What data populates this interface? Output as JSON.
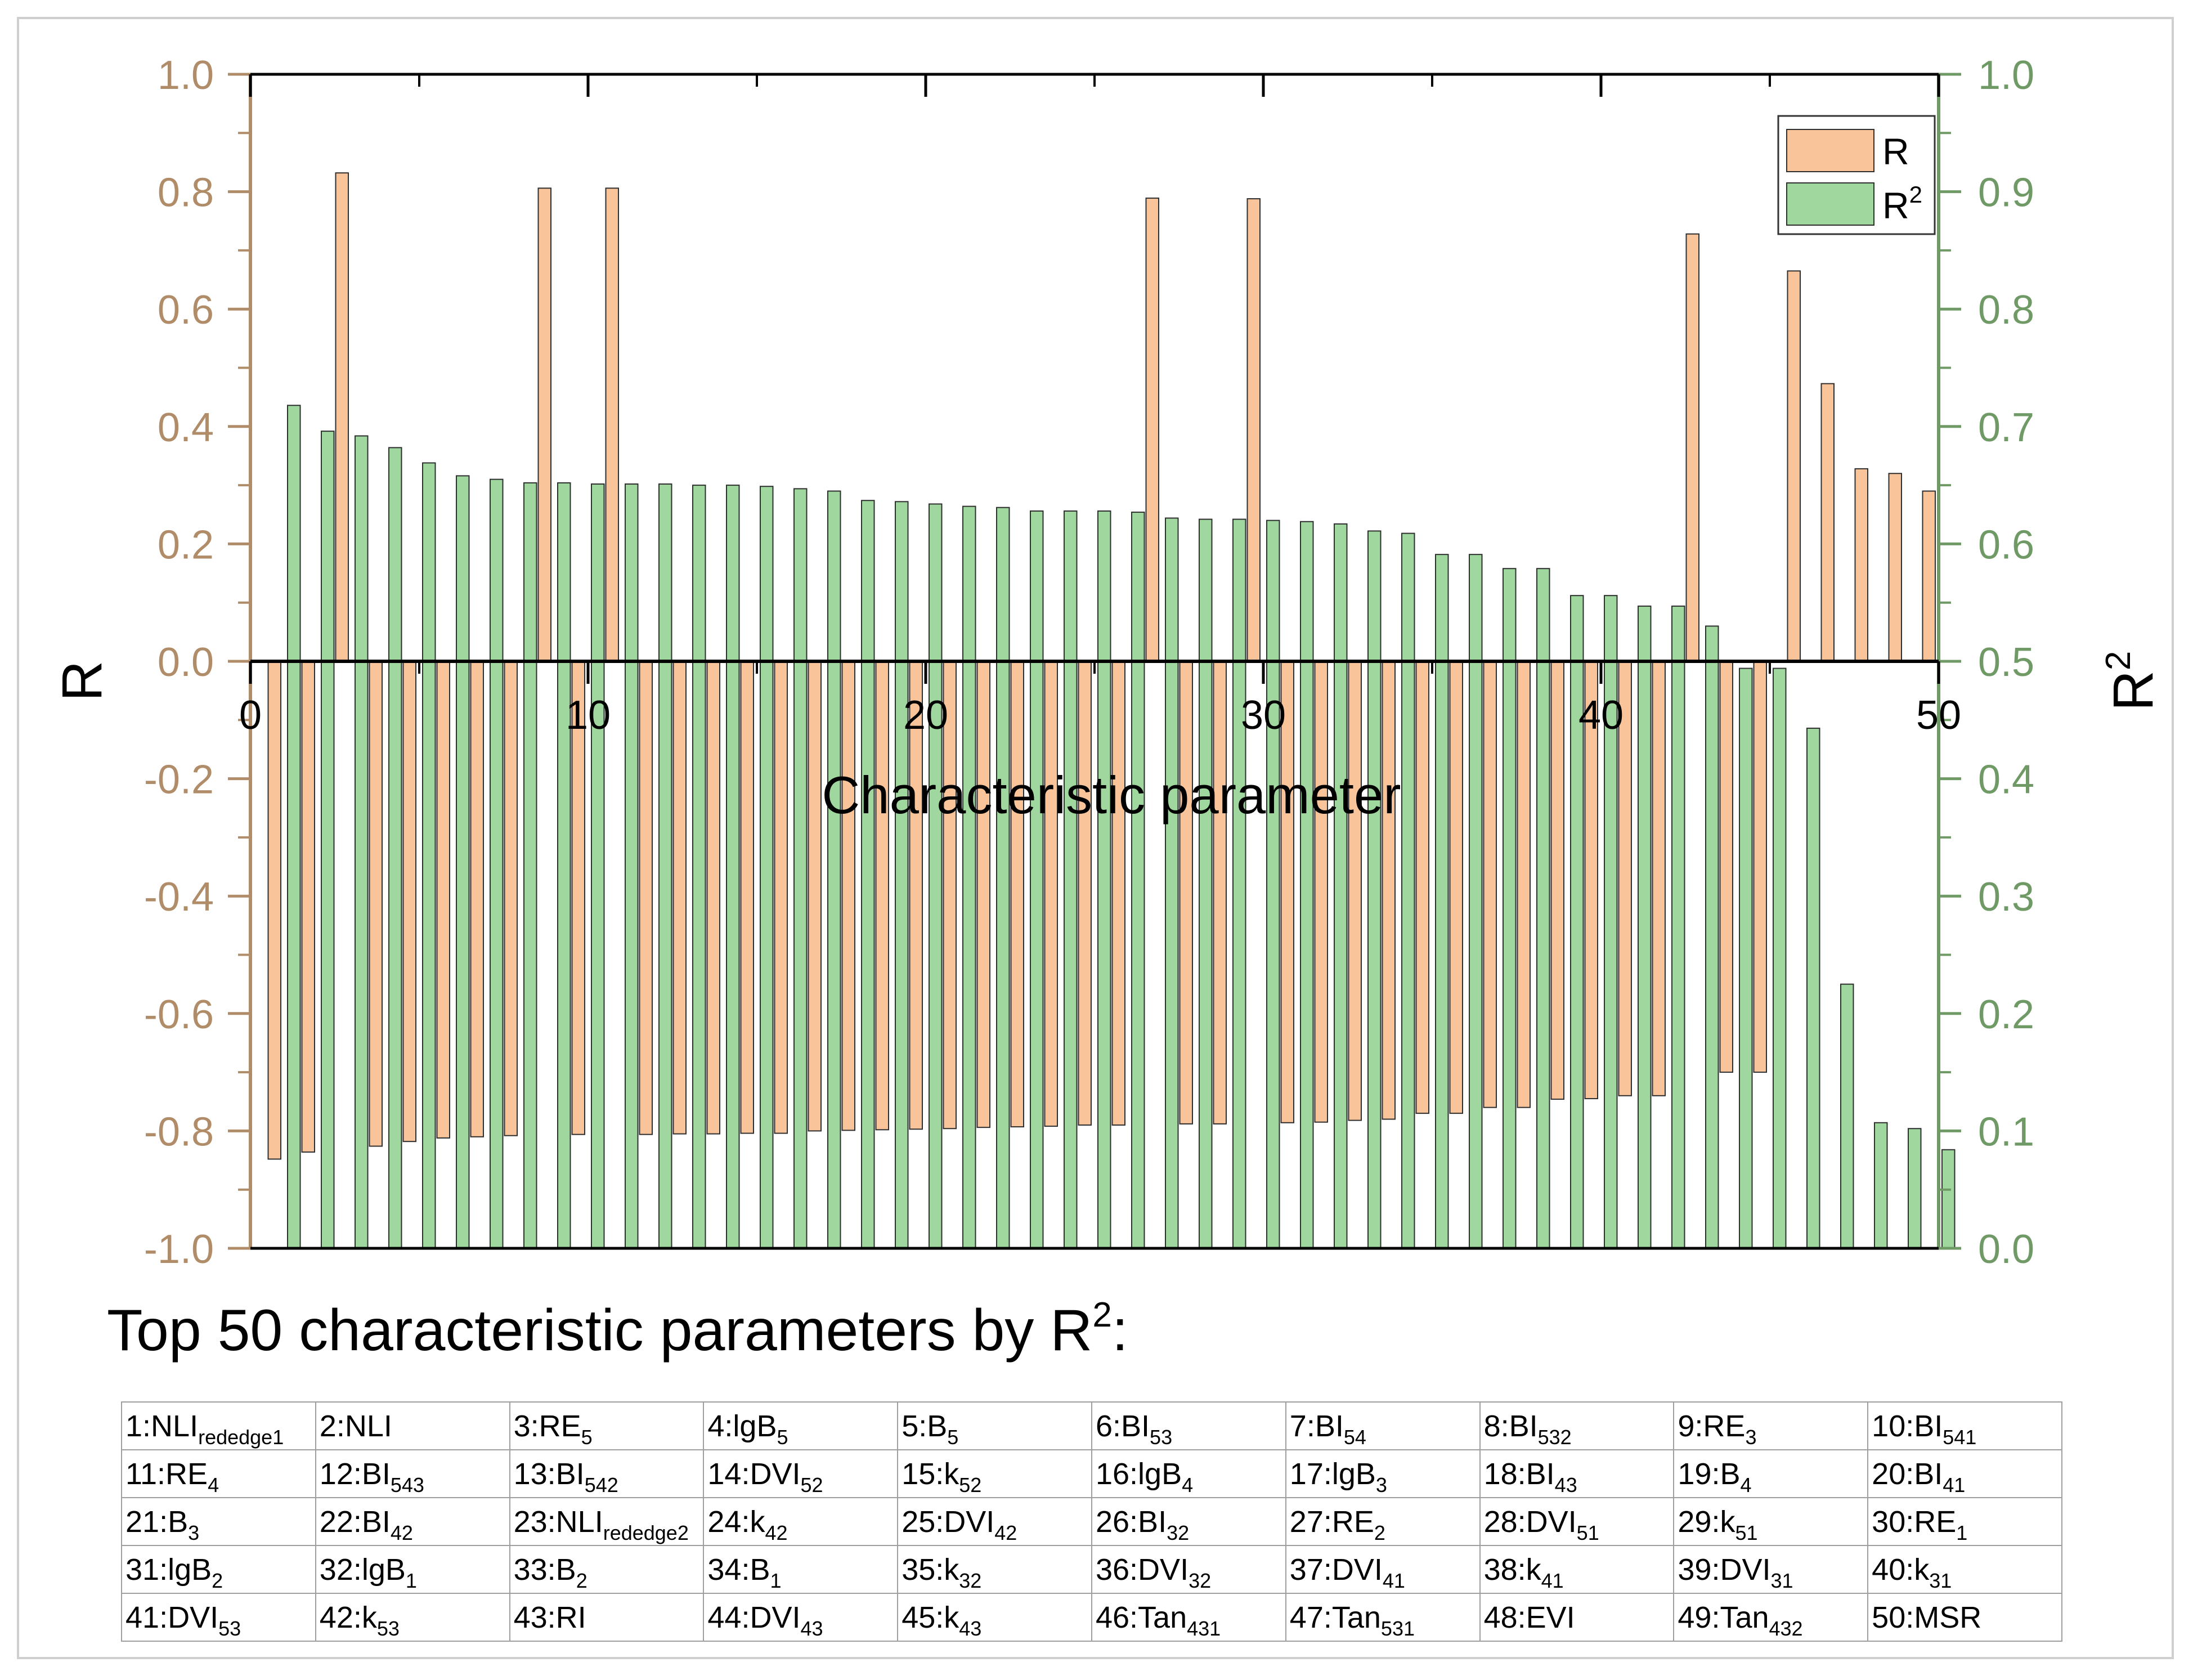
{
  "chart_data": {
    "type": "bar",
    "title": "",
    "xlabel": "Characteristic parameter",
    "ylabel": "R",
    "y2label": "R",
    "y2label_sup": "2",
    "xlim": [
      0,
      50
    ],
    "ylim": [
      -1.0,
      1.0
    ],
    "y2lim": [
      0.0,
      1.0
    ],
    "xticks": [
      "0",
      "10",
      "20",
      "30",
      "40",
      "50"
    ],
    "yticks": [
      "-1.0",
      "-0.8",
      "-0.6",
      "-0.4",
      "-0.2",
      "0.0",
      "0.2",
      "0.4",
      "0.6",
      "0.8",
      "1.0"
    ],
    "y2ticks": [
      "0.0",
      "0.1",
      "0.2",
      "0.3",
      "0.4",
      "0.5",
      "0.6",
      "0.7",
      "0.8",
      "0.9",
      "1.0"
    ],
    "legend": {
      "position": "top-right",
      "r_label": "R",
      "r2_label": "R",
      "r2_sup": "2"
    },
    "colors": {
      "r": "#f9c49a",
      "r2": "#9fd79f",
      "left_axis": "#b08c68",
      "right_axis": "#6f9a66",
      "bar_edge": "#2f2f2f"
    },
    "series": [
      {
        "name": "R",
        "axis": "left",
        "values": [
          -0.848,
          -0.836,
          0.832,
          -0.826,
          -0.818,
          -0.812,
          -0.81,
          -0.808,
          0.806,
          -0.806,
          0.806,
          -0.806,
          -0.805,
          -0.805,
          -0.804,
          -0.804,
          -0.8,
          -0.799,
          -0.798,
          -0.797,
          -0.796,
          -0.794,
          -0.793,
          -0.792,
          -0.79,
          -0.79,
          0.789,
          -0.788,
          -0.788,
          0.788,
          -0.786,
          -0.785,
          -0.782,
          -0.78,
          -0.77,
          -0.77,
          -0.76,
          -0.76,
          -0.746,
          -0.745,
          -0.74,
          -0.74,
          0.728,
          -0.7,
          -0.7,
          0.665,
          0.473,
          0.328,
          0.32,
          0.29
        ]
      },
      {
        "name": "R2",
        "axis": "right",
        "values": [
          0.718,
          0.696,
          0.692,
          0.682,
          0.669,
          0.658,
          0.655,
          0.652,
          0.652,
          0.651,
          0.651,
          0.651,
          0.65,
          0.65,
          0.649,
          0.647,
          0.645,
          0.637,
          0.636,
          0.634,
          0.632,
          0.631,
          0.628,
          0.628,
          0.628,
          0.627,
          0.622,
          0.621,
          0.621,
          0.62,
          0.619,
          0.617,
          0.611,
          0.609,
          0.591,
          0.591,
          0.579,
          0.579,
          0.556,
          0.556,
          0.547,
          0.547,
          0.53,
          0.494,
          0.494,
          0.443,
          0.225,
          0.107,
          0.102,
          0.084
        ]
      }
    ]
  },
  "parameter_list": {
    "title": "Top 50 characteristic parameters by R",
    "title_sup": "2",
    "title_suffix": ":",
    "rows": [
      [
        {
          "label": "1:NLI",
          "sub": "rededge1"
        },
        {
          "label": "2:NLI",
          "sub": ""
        },
        {
          "label": "3:RE",
          "sub": "5"
        },
        {
          "label": "4:lgB",
          "sub": "5"
        },
        {
          "label": "5:B",
          "sub": "5"
        },
        {
          "label": "6:BI",
          "sub": "53"
        },
        {
          "label": "7:BI",
          "sub": "54"
        },
        {
          "label": "8:BI",
          "sub": "532"
        },
        {
          "label": "9:RE",
          "sub": "3"
        },
        {
          "label": "10:BI",
          "sub": "541"
        }
      ],
      [
        {
          "label": "11:RE",
          "sub": "4"
        },
        {
          "label": "12:BI",
          "sub": "543"
        },
        {
          "label": "13:BI",
          "sub": "542"
        },
        {
          "label": "14:DVI",
          "sub": "52"
        },
        {
          "label": "15:k",
          "sub": "52"
        },
        {
          "label": "16:lgB",
          "sub": "4"
        },
        {
          "label": "17:lgB",
          "sub": "3"
        },
        {
          "label": "18:BI",
          "sub": "43"
        },
        {
          "label": "19:B",
          "sub": "4"
        },
        {
          "label": "20:BI",
          "sub": "41"
        }
      ],
      [
        {
          "label": "21:B",
          "sub": "3"
        },
        {
          "label": "22:BI",
          "sub": "42"
        },
        {
          "label": "23:NLI",
          "sub": "rededge2"
        },
        {
          "label": "24:k",
          "sub": "42"
        },
        {
          "label": "25:DVI",
          "sub": "42"
        },
        {
          "label": "26:BI",
          "sub": "32"
        },
        {
          "label": "27:RE",
          "sub": "2"
        },
        {
          "label": "28:DVI",
          "sub": "51"
        },
        {
          "label": "29:k",
          "sub": "51"
        },
        {
          "label": "30:RE",
          "sub": "1"
        }
      ],
      [
        {
          "label": "31:lgB",
          "sub": "2"
        },
        {
          "label": "32:lgB",
          "sub": "1"
        },
        {
          "label": "33:B",
          "sub": "2"
        },
        {
          "label": "34:B",
          "sub": "1"
        },
        {
          "label": "35:k",
          "sub": "32"
        },
        {
          "label": "36:DVI",
          "sub": "32"
        },
        {
          "label": "37:DVI",
          "sub": "41"
        },
        {
          "label": "38:k",
          "sub": "41"
        },
        {
          "label": "39:DVI",
          "sub": "31"
        },
        {
          "label": "40:k",
          "sub": "31"
        }
      ],
      [
        {
          "label": "41:DVI",
          "sub": "53"
        },
        {
          "label": "42:k",
          "sub": "53"
        },
        {
          "label": "43:RI",
          "sub": ""
        },
        {
          "label": "44:DVI",
          "sub": "43"
        },
        {
          "label": "45:k",
          "sub": "43"
        },
        {
          "label": "46:Tan",
          "sub": "431"
        },
        {
          "label": "47:Tan",
          "sub": "531"
        },
        {
          "label": "48:EVI",
          "sub": ""
        },
        {
          "label": "49:Tan",
          "sub": "432"
        },
        {
          "label": "50:MSR",
          "sub": ""
        }
      ]
    ]
  }
}
